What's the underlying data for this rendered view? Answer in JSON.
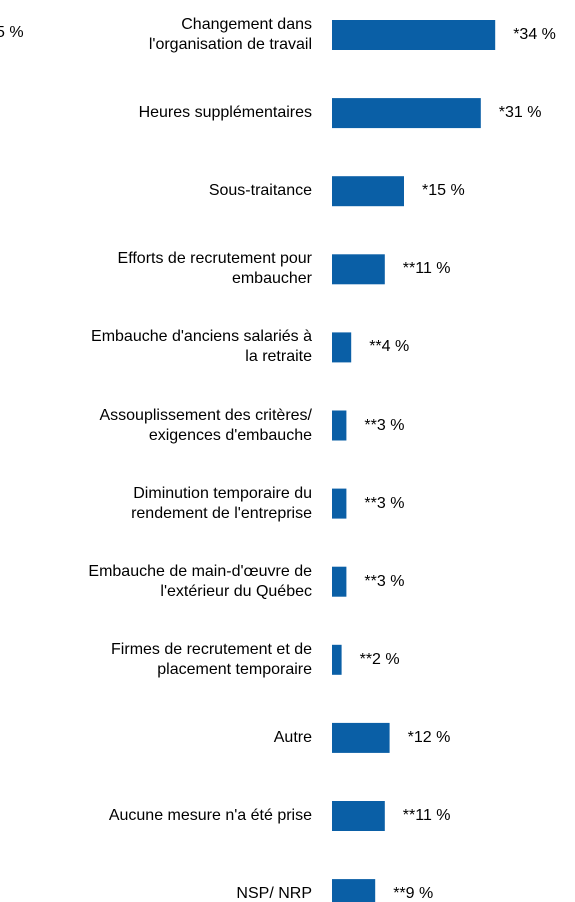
{
  "chart_data": {
    "type": "barh",
    "annotations": [
      "5 %"
    ],
    "categories": [
      "Changement dans\nl'organisation de travail",
      "Heures supplémentaires",
      "Sous-traitance",
      "Efforts de recrutement pour\nembaucher",
      "Embauche d'anciens salariés à\nla retraite",
      "Assouplissement des critères/\nexigences d'embauche",
      "Diminution temporaire du\nrendement de l'entreprise",
      "Embauche de main-d'œuvre de\nl'extérieur du Québec",
      "Firmes de recrutement et de\nplacement temporaire",
      "Autre",
      "Aucune mesure n'a été prise",
      "NSP/ NRP"
    ],
    "values": [
      34,
      31,
      15,
      11,
      4,
      3,
      3,
      3,
      2,
      12,
      11,
      9
    ],
    "value_labels": [
      "*34 %",
      "*31 %",
      "*15 %",
      "**11 %",
      "**4 %",
      "**3 %",
      "**3 %",
      "**3 %",
      "**2 %",
      "*12 %",
      "**11 %",
      "**9 %"
    ],
    "color": "#0a5fa6"
  }
}
